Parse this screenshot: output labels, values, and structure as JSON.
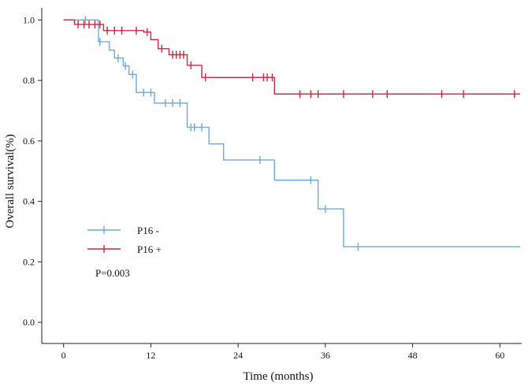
{
  "chart_data": {
    "type": "line",
    "subtype": "kaplan-meier-step",
    "title": "",
    "xlabel": "Time (months)",
    "ylabel": "Overall survival(%)",
    "xlim": [
      -3,
      63
    ],
    "ylim": [
      -0.07,
      1.04
    ],
    "xticks": [
      0,
      12,
      24,
      36,
      48,
      60
    ],
    "xtick_labels": [
      "0",
      "12",
      "24",
      "36",
      "48",
      "60"
    ],
    "yticks": [
      0,
      0.2,
      0.4,
      0.6,
      0.8,
      1.0
    ],
    "ytick_labels": [
      "0.0",
      "0.2",
      "0.4",
      "0.6",
      "0.8",
      "1.0"
    ],
    "grid": false,
    "legend_position": "center-left",
    "annotation": "P=0.003",
    "series": [
      {
        "name": "P16 -",
        "color": "#6fa8dc",
        "steps": [
          [
            0,
            1.0
          ],
          [
            4.8,
            0.928
          ],
          [
            6.3,
            0.9
          ],
          [
            7.0,
            0.874
          ],
          [
            8.2,
            0.848
          ],
          [
            9.0,
            0.82
          ],
          [
            10.0,
            0.76
          ],
          [
            12.5,
            0.725
          ],
          [
            17.0,
            0.645
          ],
          [
            20.0,
            0.59
          ],
          [
            22.0,
            0.537
          ],
          [
            29.0,
            0.47
          ],
          [
            35.0,
            0.375
          ],
          [
            38.5,
            0.25
          ],
          [
            62.8,
            0.25
          ]
        ],
        "censored": [
          [
            3.0,
            1.0
          ],
          [
            5.0,
            0.928
          ],
          [
            7.5,
            0.874
          ],
          [
            8.5,
            0.848
          ],
          [
            9.5,
            0.82
          ],
          [
            11.0,
            0.76
          ],
          [
            12.0,
            0.76
          ],
          [
            14.0,
            0.725
          ],
          [
            15.0,
            0.725
          ],
          [
            16.0,
            0.725
          ],
          [
            17.5,
            0.645
          ],
          [
            18.0,
            0.645
          ],
          [
            19.0,
            0.645
          ],
          [
            27.0,
            0.537
          ],
          [
            34.0,
            0.47
          ],
          [
            36.0,
            0.375
          ],
          [
            40.5,
            0.25
          ]
        ]
      },
      {
        "name": "P16 +",
        "color": "#c8283f",
        "steps": [
          [
            0,
            1.0
          ],
          [
            1.5,
            0.985
          ],
          [
            5.5,
            0.965
          ],
          [
            11.0,
            0.96
          ],
          [
            12.0,
            0.935
          ],
          [
            13.0,
            0.905
          ],
          [
            14.5,
            0.885
          ],
          [
            17.0,
            0.85
          ],
          [
            19.0,
            0.81
          ],
          [
            29.0,
            0.755
          ],
          [
            62.8,
            0.755
          ]
        ],
        "censored": [
          [
            2.0,
            0.985
          ],
          [
            2.8,
            0.985
          ],
          [
            3.5,
            0.985
          ],
          [
            4.3,
            0.985
          ],
          [
            5.0,
            0.985
          ],
          [
            6.0,
            0.965
          ],
          [
            7.0,
            0.965
          ],
          [
            8.0,
            0.965
          ],
          [
            10.0,
            0.965
          ],
          [
            11.5,
            0.96
          ],
          [
            13.5,
            0.905
          ],
          [
            15.0,
            0.885
          ],
          [
            15.5,
            0.885
          ],
          [
            16.0,
            0.885
          ],
          [
            16.5,
            0.885
          ],
          [
            17.5,
            0.85
          ],
          [
            19.5,
            0.81
          ],
          [
            26.0,
            0.81
          ],
          [
            27.5,
            0.81
          ],
          [
            28.0,
            0.81
          ],
          [
            28.7,
            0.81
          ],
          [
            32.5,
            0.755
          ],
          [
            34.0,
            0.755
          ],
          [
            35.0,
            0.755
          ],
          [
            38.5,
            0.755
          ],
          [
            42.5,
            0.755
          ],
          [
            44.5,
            0.755
          ],
          [
            52.0,
            0.755
          ],
          [
            55.0,
            0.755
          ],
          [
            62.0,
            0.755
          ]
        ]
      }
    ]
  }
}
